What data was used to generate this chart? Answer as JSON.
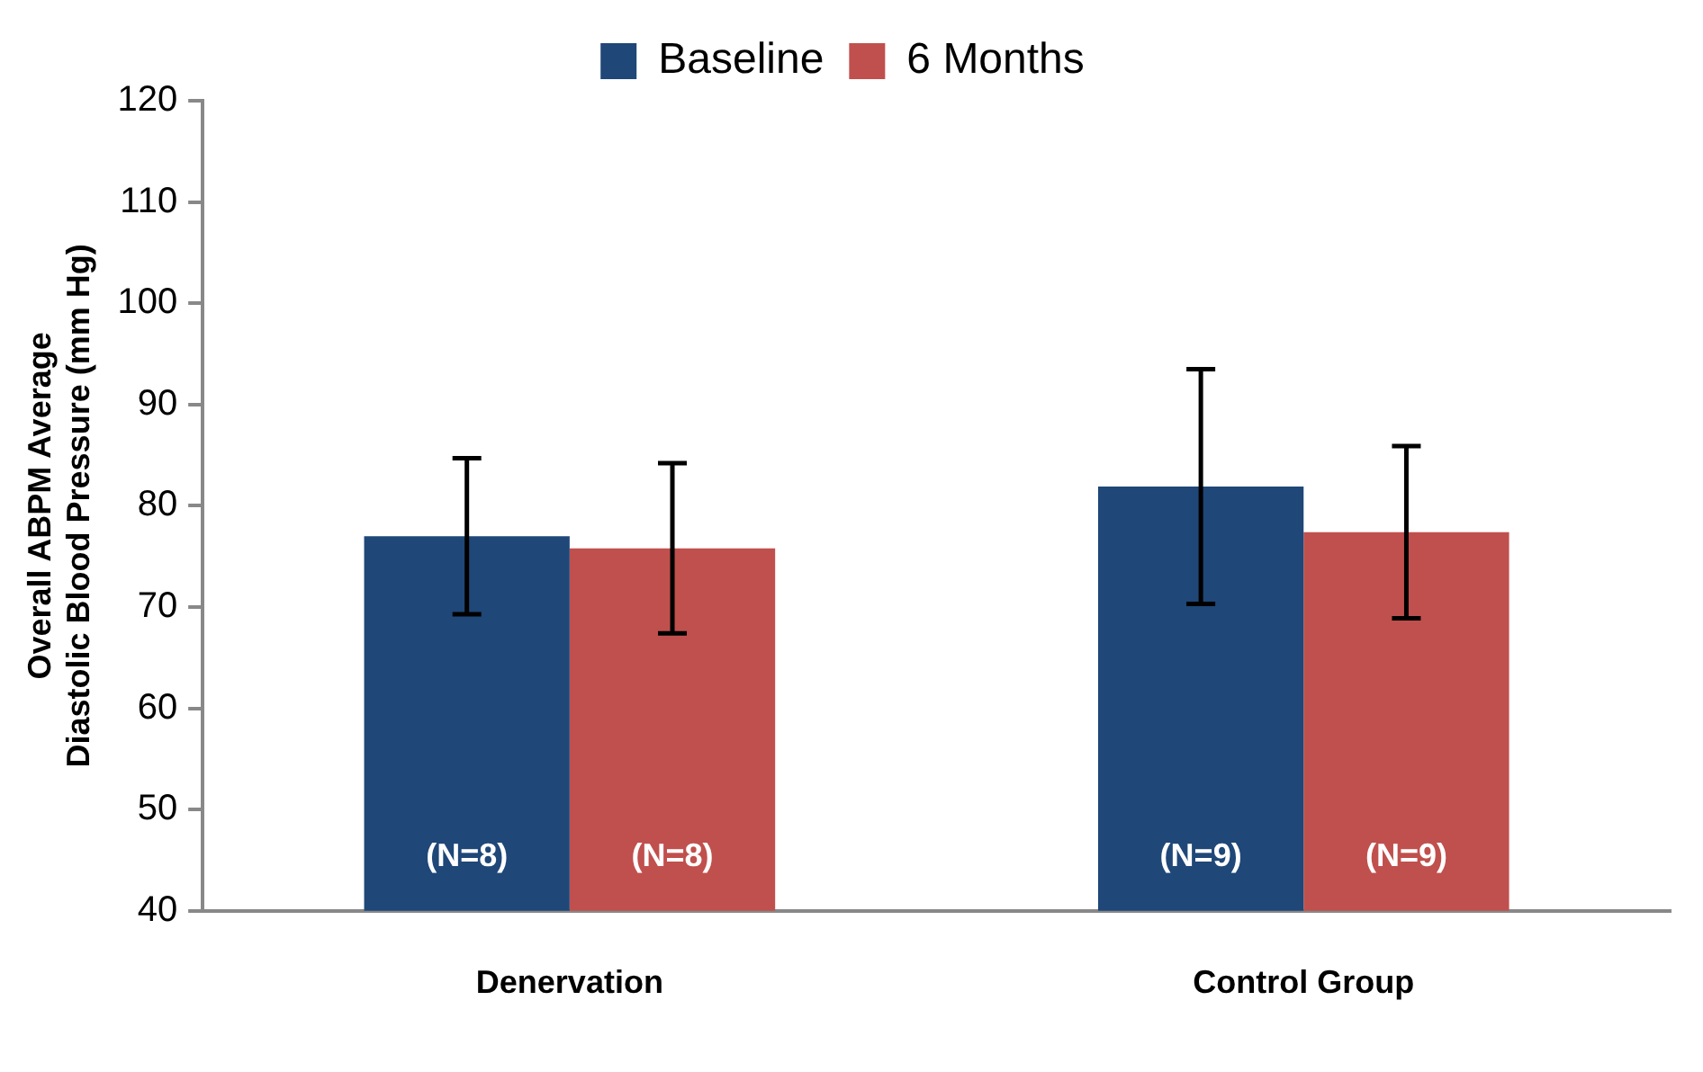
{
  "chart_data": {
    "type": "bar",
    "ylabel": "Overall ABPM Average\nDiastolic Blood Pressure (mm Hg)",
    "categories": [
      "Denervation",
      "Control Group"
    ],
    "series": [
      {
        "name": "Baseline",
        "color": "#1f4778",
        "values": [
          77,
          81.9
        ],
        "errors": [
          7.7,
          11.6
        ]
      },
      {
        "name": "6 Months",
        "color": "#c0504d",
        "values": [
          75.8,
          77.4
        ],
        "errors": [
          8.4,
          8.5
        ]
      }
    ],
    "annotations": [
      "(N=8)",
      "(N=8)",
      "(N=9)",
      "(N=9)"
    ],
    "ylim": [
      40,
      120
    ],
    "yticks": [
      40,
      50,
      60,
      70,
      80,
      90,
      100,
      110,
      120
    ],
    "grid": false,
    "legend": "top"
  }
}
